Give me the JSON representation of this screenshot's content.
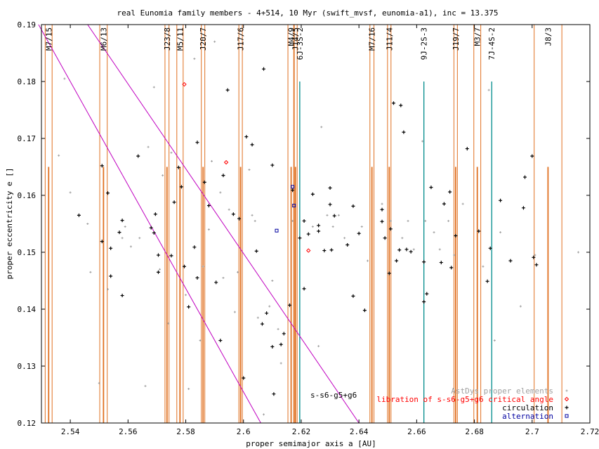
{
  "chart_data": {
    "type": "scatter",
    "title": "real Eunomia family members - 4+514, 10 Myr (swift_mvsf, eunomia-a1), inc = 13.375",
    "xlabel": "proper semimajor axis a [AU]",
    "ylabel": "proper eccentricity e []",
    "xlim": [
      2.53,
      2.72
    ],
    "ylim": [
      0.12,
      0.19
    ],
    "x_ticks": [
      "2.54",
      "2.56",
      "2.58",
      "2.6",
      "2.62",
      "2.64",
      "2.66",
      "2.68",
      "2.7",
      "2.72"
    ],
    "y_ticks": [
      "0.12",
      "0.13",
      "0.14",
      "0.15",
      "0.16",
      "0.17",
      "0.18",
      "0.19"
    ],
    "grid": false,
    "legend_position": "bottom-right",
    "legend": [
      {
        "label": "AstDys proper elements",
        "color": "#a0a0a0",
        "marker": "dot"
      },
      {
        "label": "libration of s-s6-g5+g6 critical angle",
        "color": "#ff0000",
        "marker": "diamond"
      },
      {
        "label": "circulation",
        "color": "#000000",
        "marker": "plus"
      },
      {
        "label": "alternation",
        "color": "#0000a0",
        "marker": "square"
      }
    ],
    "colors": {
      "resonance": "#e07020",
      "secular": "#c000c0",
      "three_body": "#008b8b",
      "astdys": "#a0a0a0",
      "libration": "#ff0000",
      "circulation": "#000000",
      "alternation": "#0000a0"
    },
    "resonances": [
      {
        "label": "M7/15",
        "a": 2.5325,
        "hw": 0.0012
      },
      {
        "label": "M6/13",
        "a": 2.5515,
        "hw": 0.0013
      },
      {
        "label": "J23/8",
        "a": 2.5735,
        "hw": 0.0007
      },
      {
        "label": "M5/11",
        "a": 2.578,
        "hw": 0.0011
      },
      {
        "label": "J20/7",
        "a": 2.586,
        "hw": 0.0006
      },
      {
        "label": "J17/6",
        "a": 2.599,
        "hw": 0.0006
      },
      {
        "label": "M4/9",
        "a": 2.6165,
        "hw": 0.0011
      },
      {
        "label": "J14/5",
        "a": 2.618,
        "hw": 0.0006
      },
      {
        "label": "6J-3S-2",
        "a": 2.6195,
        "hw": 0.0003
      },
      {
        "label": "M7/16",
        "a": 2.6445,
        "hw": 0.0007
      },
      {
        "label": "J11/4",
        "a": 2.6505,
        "hw": 0.0006
      },
      {
        "label": "9J-2S-3",
        "a": 2.6625,
        "hw": 0.0002
      },
      {
        "label": "J19/7",
        "a": 2.6735,
        "hw": 0.0006
      },
      {
        "label": "M3/7",
        "a": 2.681,
        "hw": 0.0012
      },
      {
        "label": "7J-4S-2",
        "a": 2.686,
        "hw": 0.0002
      },
      {
        "label": "J8/3",
        "a": 2.7055,
        "hw": 0.0048
      }
    ],
    "secular_resonance": {
      "label": "s-s6-g5+g6",
      "lines": [
        [
          [
            2.546,
            0.19
          ],
          [
            2.64,
            0.12
          ]
        ],
        [
          [
            2.529,
            0.19
          ],
          [
            2.606,
            0.12
          ]
        ]
      ]
    },
    "series": [
      {
        "name": "AstDys proper elements",
        "marker": "dot",
        "points": [
          [
            2.536,
            0.167
          ],
          [
            2.538,
            0.1805
          ],
          [
            2.54,
            0.1605
          ],
          [
            2.546,
            0.155
          ],
          [
            2.547,
            0.1465
          ],
          [
            2.55,
            0.127
          ],
          [
            2.553,
            0.1435
          ],
          [
            2.558,
            0.1525
          ],
          [
            2.559,
            0.1545
          ],
          [
            2.561,
            0.151
          ],
          [
            2.564,
            0.1525
          ],
          [
            2.566,
            0.1265
          ],
          [
            2.567,
            0.1685
          ],
          [
            2.569,
            0.179
          ],
          [
            2.571,
            0.147
          ],
          [
            2.572,
            0.1635
          ],
          [
            2.574,
            0.1375
          ],
          [
            2.575,
            0.1675
          ],
          [
            2.58,
            0.1425
          ],
          [
            2.581,
            0.126
          ],
          [
            2.583,
            0.184
          ],
          [
            2.585,
            0.1345
          ],
          [
            2.586,
            0.1475
          ],
          [
            2.588,
            0.154
          ],
          [
            2.589,
            0.166
          ],
          [
            2.59,
            0.187
          ],
          [
            2.592,
            0.1605
          ],
          [
            2.593,
            0.1455
          ],
          [
            2.595,
            0.1575
          ],
          [
            2.597,
            0.1395
          ],
          [
            2.598,
            0.1465
          ],
          [
            2.602,
            0.1645
          ],
          [
            2.603,
            0.1565
          ],
          [
            2.604,
            0.1555
          ],
          [
            2.605,
            0.1385
          ],
          [
            2.607,
            0.1215
          ],
          [
            2.609,
            0.1405
          ],
          [
            2.61,
            0.145
          ],
          [
            2.612,
            0.1365
          ],
          [
            2.613,
            0.1305
          ],
          [
            2.617,
            0.1555
          ],
          [
            2.621,
            0.1555
          ],
          [
            2.624,
            0.1545
          ],
          [
            2.626,
            0.1335
          ],
          [
            2.627,
            0.172
          ],
          [
            2.629,
            0.1565
          ],
          [
            2.631,
            0.1545
          ],
          [
            2.633,
            0.1565
          ],
          [
            2.635,
            0.1525
          ],
          [
            2.641,
            0.1545
          ],
          [
            2.643,
            0.1485
          ],
          [
            2.648,
            0.1585
          ],
          [
            2.651,
            0.1555
          ],
          [
            2.655,
            0.1525
          ],
          [
            2.657,
            0.1555
          ],
          [
            2.659,
            0.1505
          ],
          [
            2.662,
            0.1695
          ],
          [
            2.663,
            0.1555
          ],
          [
            2.666,
            0.1535
          ],
          [
            2.668,
            0.1505
          ],
          [
            2.671,
            0.1555
          ],
          [
            2.673,
            0.1495
          ],
          [
            2.676,
            0.1585
          ],
          [
            2.683,
            0.1475
          ],
          [
            2.685,
            0.1785
          ],
          [
            2.687,
            0.1345
          ],
          [
            2.689,
            0.1535
          ],
          [
            2.696,
            0.1405
          ],
          [
            2.701,
            0.1495
          ],
          [
            2.716,
            0.15
          ]
        ]
      },
      {
        "name": "libration of s-s6-g5+g6 critical angle",
        "marker": "diamond",
        "points": [
          [
            2.5795,
            0.1795
          ],
          [
            2.594,
            0.1658
          ],
          [
            2.6225,
            0.1503
          ]
        ]
      },
      {
        "name": "circulation",
        "marker": "plus",
        "points": [
          [
            2.543,
            0.1565
          ],
          [
            2.551,
            0.1519
          ],
          [
            2.551,
            0.1652
          ],
          [
            2.553,
            0.1604
          ],
          [
            2.554,
            0.1458
          ],
          [
            2.554,
            0.1507
          ],
          [
            2.557,
            0.1535
          ],
          [
            2.558,
            0.1556
          ],
          [
            2.558,
            0.1424
          ],
          [
            2.5635,
            0.1669
          ],
          [
            2.568,
            0.1543
          ],
          [
            2.569,
            0.1534
          ],
          [
            2.5695,
            0.1567
          ],
          [
            2.5705,
            0.1495
          ],
          [
            2.5705,
            0.1465
          ],
          [
            2.575,
            0.1494
          ],
          [
            2.576,
            0.1588
          ],
          [
            2.5775,
            0.1649
          ],
          [
            2.5785,
            0.1615
          ],
          [
            2.5795,
            0.1475
          ],
          [
            2.581,
            0.1404
          ],
          [
            2.583,
            0.1509
          ],
          [
            2.584,
            0.1693
          ],
          [
            2.584,
            0.1455
          ],
          [
            2.5865,
            0.1623
          ],
          [
            2.588,
            0.1582
          ],
          [
            2.5905,
            0.1447
          ],
          [
            2.592,
            0.1345
          ],
          [
            2.593,
            0.1635
          ],
          [
            2.5945,
            0.1785
          ],
          [
            2.5965,
            0.1567
          ],
          [
            2.5985,
            0.1559
          ],
          [
            2.6,
            0.1279
          ],
          [
            2.601,
            0.1703
          ],
          [
            2.603,
            0.1689
          ],
          [
            2.6045,
            0.1502
          ],
          [
            2.6065,
            0.1374
          ],
          [
            2.607,
            0.1822
          ],
          [
            2.608,
            0.1393
          ],
          [
            2.61,
            0.1653
          ],
          [
            2.61,
            0.1334
          ],
          [
            2.6105,
            0.1251
          ],
          [
            2.613,
            0.1338
          ],
          [
            2.614,
            0.1357
          ],
          [
            2.616,
            0.1407
          ],
          [
            2.617,
            0.1609
          ],
          [
            2.6195,
            0.1525
          ],
          [
            2.621,
            0.1436
          ],
          [
            2.621,
            0.1555
          ],
          [
            2.6225,
            0.1532
          ],
          [
            2.624,
            0.1602
          ],
          [
            2.626,
            0.1537
          ],
          [
            2.626,
            0.1547
          ],
          [
            2.628,
            0.1503
          ],
          [
            2.63,
            0.1584
          ],
          [
            2.63,
            0.1613
          ],
          [
            2.6305,
            0.1504
          ],
          [
            2.6315,
            0.1564
          ],
          [
            2.636,
            0.1513
          ],
          [
            2.638,
            0.1423
          ],
          [
            2.638,
            0.1581
          ],
          [
            2.64,
            0.1533
          ],
          [
            2.642,
            0.1398
          ],
          [
            2.648,
            0.1554
          ],
          [
            2.648,
            0.1575
          ],
          [
            2.649,
            0.1525
          ],
          [
            2.6505,
            0.1463
          ],
          [
            2.651,
            0.1541
          ],
          [
            2.652,
            0.1762
          ],
          [
            2.653,
            0.1485
          ],
          [
            2.654,
            0.1504
          ],
          [
            2.6545,
            0.1758
          ],
          [
            2.6555,
            0.1711
          ],
          [
            2.6565,
            0.1505
          ],
          [
            2.658,
            0.1501
          ],
          [
            2.6625,
            0.1483
          ],
          [
            2.6625,
            0.1413
          ],
          [
            2.6635,
            0.1427
          ],
          [
            2.665,
            0.1614
          ],
          [
            2.6685,
            0.1482
          ],
          [
            2.6695,
            0.1585
          ],
          [
            2.6715,
            0.1606
          ],
          [
            2.672,
            0.1473
          ],
          [
            2.6735,
            0.1529
          ],
          [
            2.6775,
            0.1682
          ],
          [
            2.6815,
            0.1537
          ],
          [
            2.6845,
            0.1449
          ],
          [
            2.6855,
            0.1507
          ],
          [
            2.689,
            0.1591
          ],
          [
            2.6925,
            0.1485
          ],
          [
            2.697,
            0.1578
          ],
          [
            2.6975,
            0.1632
          ],
          [
            2.7,
            0.1669
          ],
          [
            2.7005,
            0.1491
          ],
          [
            2.7015,
            0.1478
          ]
        ]
      },
      {
        "name": "alternation",
        "marker": "square",
        "points": [
          [
            2.6115,
            0.1538
          ],
          [
            2.617,
            0.1615
          ],
          [
            2.6175,
            0.1582
          ]
        ]
      }
    ]
  }
}
